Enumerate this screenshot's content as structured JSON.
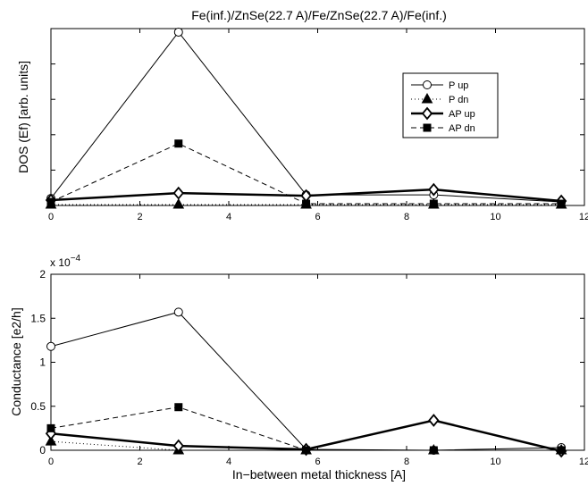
{
  "chart_data": [
    {
      "type": "line",
      "title": "Fe(inf.)/ZnSe(22.7 A)/Fe/ZnSe(22.7 A)/Fe(inf.)",
      "xlabel": "",
      "ylabel": "DOS (Ef) [arb. units]",
      "xlim": [
        0,
        12
      ],
      "ylim": [
        0,
        1
      ],
      "xticks": [
        0,
        2,
        4,
        6,
        8,
        10,
        12
      ],
      "yticks": [
        0,
        0.2,
        0.4,
        0.6,
        0.8,
        1
      ],
      "ytick_labels_shown": false,
      "legend_position": "top-right",
      "x": [
        0,
        2.87,
        5.74,
        8.61,
        11.48
      ],
      "series": [
        {
          "name": "P up",
          "values": [
            0.04,
            0.98,
            0.06,
            0.06,
            0.02
          ]
        },
        {
          "name": "P dn",
          "values": [
            0.005,
            0.005,
            0.005,
            0.005,
            0.005
          ]
        },
        {
          "name": "AP up",
          "values": [
            0.03,
            0.07,
            0.055,
            0.09,
            0.025
          ]
        },
        {
          "name": "AP dn",
          "values": [
            0.02,
            0.35,
            0.01,
            0.01,
            0.01
          ]
        }
      ]
    },
    {
      "type": "line",
      "title": "",
      "xlabel": "In−between metal thickness [A]",
      "ylabel": "Conductance [e2/h]",
      "exponent_label": "x 10",
      "exponent_power": "−4",
      "xlim": [
        0,
        12
      ],
      "ylim": [
        0,
        2
      ],
      "xticks": [
        0,
        2,
        4,
        6,
        8,
        10,
        12
      ],
      "yticks": [
        0,
        0.5,
        1,
        1.5,
        2
      ],
      "ytick_labels": [
        "0",
        "0.5",
        "1",
        "1.5",
        "2"
      ],
      "x": [
        0,
        2.87,
        5.74,
        8.61,
        11.48
      ],
      "series": [
        {
          "name": "P up",
          "values": [
            1.18,
            1.57,
            0.01,
            0.0,
            0.03
          ]
        },
        {
          "name": "P dn",
          "values": [
            0.1,
            0.0,
            0.0,
            0.0,
            0.0
          ]
        },
        {
          "name": "AP up",
          "values": [
            0.19,
            0.05,
            0.01,
            0.34,
            -0.01
          ]
        },
        {
          "name": "AP dn",
          "values": [
            0.25,
            0.49,
            0.0,
            0.0,
            0.0
          ]
        }
      ]
    }
  ]
}
